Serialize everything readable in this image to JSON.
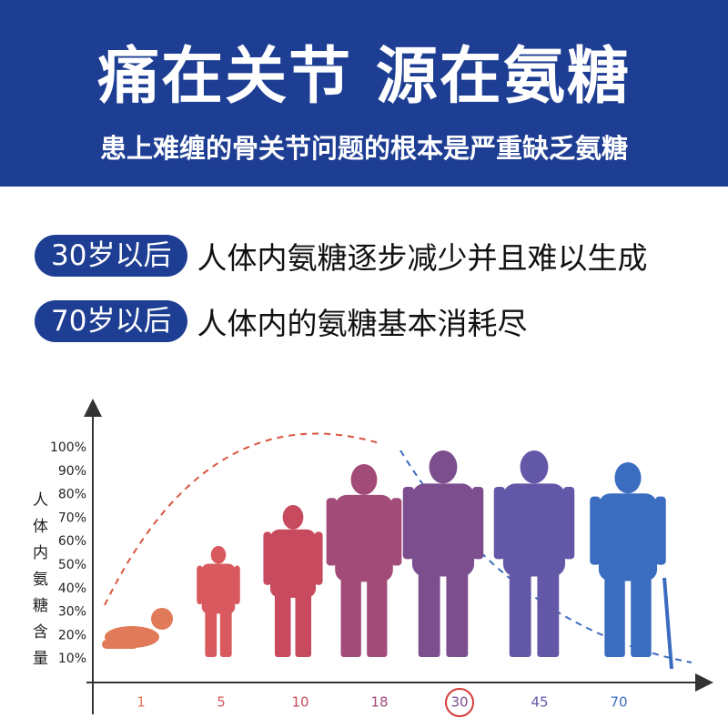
{
  "header": {
    "title": "痛在关节 源在氨糖",
    "subtitle": "患上难缠的骨关节问题的根本是严重缺乏氨糖"
  },
  "points": [
    {
      "badge": "30岁以后",
      "text": "人体内氨糖逐步减少并且难以生成"
    },
    {
      "badge": "70岁以后",
      "text": "人体内的氨糖基本消耗尽"
    }
  ],
  "graph": {
    "y_label": "人体内氨糖含量",
    "y_ticks": [
      "100%",
      "90%",
      "80%",
      "70%",
      "60%",
      "50%",
      "40%",
      "30%",
      "20%",
      "10%"
    ],
    "x_labels": [
      "1",
      "5",
      "10",
      "18",
      "30",
      "45",
      "70"
    ]
  }
}
